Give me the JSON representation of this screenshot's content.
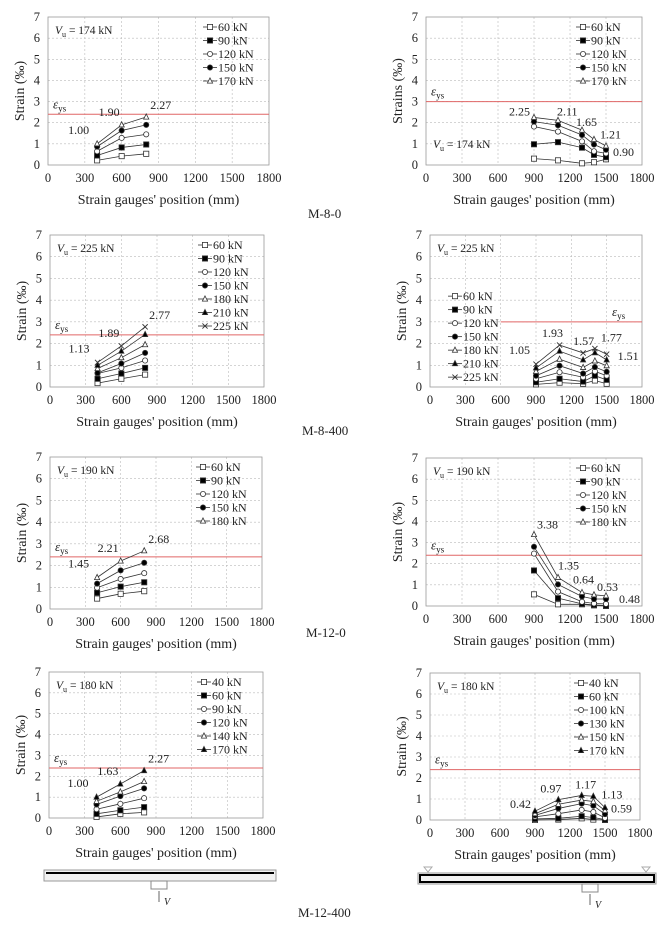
{
  "figure": {
    "captions": [
      "M-8-0",
      "M-8-400",
      "M-12-0",
      "M-12-400"
    ],
    "force_symbol": "V",
    "colors": {
      "yield_line": "#e06666",
      "series": "#333333",
      "grid": "#bbbbbb"
    }
  },
  "chart_data": [
    {
      "type": "line",
      "xlabel": "Strain gauges' position (mm)",
      "ylabel": "Strain (‰)",
      "xlim": [
        0,
        1800
      ],
      "ylim": [
        0,
        7
      ],
      "xticks": [
        0,
        300,
        600,
        900,
        1200,
        1500,
        1800
      ],
      "yticks": [
        0,
        1,
        2,
        3,
        4,
        5,
        6,
        7
      ],
      "grid": true,
      "vu": {
        "symbol": "V",
        "sub": "u",
        "text": " = 174 kN"
      },
      "vu_position": "top-left",
      "yield": {
        "symbol": "ε",
        "sub": "ys",
        "value": 2.4,
        "from": 0
      },
      "legend": "top-right",
      "x": [
        400,
        600,
        800
      ],
      "series": [
        {
          "name": "60 kN",
          "marker": "square-open",
          "values": [
            0.22,
            0.42,
            0.53
          ]
        },
        {
          "name": "90 kN",
          "marker": "square-filled",
          "values": [
            0.45,
            0.83,
            0.97
          ]
        },
        {
          "name": "120 kN",
          "marker": "circle-open",
          "values": [
            0.65,
            1.28,
            1.45
          ]
        },
        {
          "name": "150 kN",
          "marker": "circle-filled",
          "values": [
            0.87,
            1.63,
            1.9
          ]
        },
        {
          "name": "170 kN",
          "marker": "triangle-open",
          "values": [
            1.0,
            1.9,
            2.27
          ]
        }
      ],
      "labels": [
        "1.00",
        "1.90",
        "2.27"
      ]
    },
    {
      "type": "line",
      "xlabel": "Strain gauges' position (mm)",
      "ylabel": "Strains (‰)",
      "xlim": [
        0,
        1800
      ],
      "ylim": [
        0,
        7
      ],
      "xticks": [
        0,
        300,
        600,
        900,
        1200,
        1500,
        1800
      ],
      "yticks": [
        0,
        1,
        2,
        3,
        4,
        5,
        6,
        7
      ],
      "grid": true,
      "vu": {
        "symbol": "V",
        "sub": "u",
        "text": " = 174 kN"
      },
      "vu_position": "bottom-left",
      "yield": {
        "symbol": "ε",
        "sub": "ys",
        "value": 3.0,
        "from": 0
      },
      "legend": "top-right",
      "x": [
        900,
        1100,
        1300,
        1400,
        1500
      ],
      "series": [
        {
          "name": "60 kN",
          "marker": "square-open",
          "values": [
            0.3,
            0.22,
            0.08,
            0.13,
            0.27
          ]
        },
        {
          "name": "90 kN",
          "marker": "square-filled",
          "values": [
            0.98,
            1.08,
            0.82,
            0.48,
            0.37
          ]
        },
        {
          "name": "120 kN",
          "marker": "circle-open",
          "values": [
            1.82,
            1.58,
            1.12,
            0.65,
            0.55
          ]
        },
        {
          "name": "150 kN",
          "marker": "circle-filled",
          "values": [
            2.05,
            1.88,
            1.42,
            0.97,
            0.72
          ]
        },
        {
          "name": "170 kN",
          "marker": "triangle-open",
          "values": [
            2.25,
            2.11,
            1.65,
            1.21,
            0.9
          ]
        }
      ],
      "labels": [
        "2.25",
        "2.11",
        "1.65",
        "1.21",
        "0.90"
      ]
    },
    {
      "type": "line",
      "xlabel": "Strain gauges' position (mm)",
      "ylabel": "Strain (‰)",
      "xlim": [
        0,
        1800
      ],
      "ylim": [
        0,
        7
      ],
      "xticks": [
        0,
        300,
        600,
        900,
        1200,
        1500,
        1800
      ],
      "yticks": [
        0,
        1,
        2,
        3,
        4,
        5,
        6,
        7
      ],
      "grid": true,
      "vu": {
        "symbol": "V",
        "sub": "u",
        "text": " = 225 kN"
      },
      "vu_position": "top-left",
      "yield": {
        "symbol": "ε",
        "sub": "ys",
        "value": 2.4,
        "from": 0
      },
      "legend": "top-right",
      "x": [
        400,
        600,
        800
      ],
      "series": [
        {
          "name": "60 kN",
          "marker": "square-open",
          "values": [
            0.18,
            0.38,
            0.57
          ]
        },
        {
          "name": "90 kN",
          "marker": "square-filled",
          "values": [
            0.38,
            0.62,
            0.88
          ]
        },
        {
          "name": "120 kN",
          "marker": "circle-open",
          "values": [
            0.62,
            0.88,
            1.22
          ]
        },
        {
          "name": "150 kN",
          "marker": "circle-filled",
          "values": [
            0.65,
            1.08,
            1.57
          ]
        },
        {
          "name": "180 kN",
          "marker": "triangle-open",
          "values": [
            0.85,
            1.35,
            1.95
          ]
        },
        {
          "name": "210 kN",
          "marker": "triangle-filled",
          "values": [
            1.0,
            1.65,
            2.42
          ]
        },
        {
          "name": "225 kN",
          "marker": "cross",
          "values": [
            1.13,
            1.89,
            2.77
          ]
        }
      ],
      "labels": [
        "1.13",
        "1.89",
        "2.77"
      ]
    },
    {
      "type": "line",
      "xlabel": "Strain gauges' position (mm)",
      "ylabel": "Strain (‰)",
      "xlim": [
        0,
        1800
      ],
      "ylim": [
        0,
        7
      ],
      "xticks": [
        0,
        300,
        600,
        900,
        1200,
        1500,
        1800
      ],
      "yticks": [
        0,
        1,
        2,
        3,
        4,
        5,
        6,
        7
      ],
      "grid": true,
      "vu": {
        "symbol": "V",
        "sub": "u",
        "text": " = 225 kN"
      },
      "vu_position": "top-left",
      "yield": {
        "symbol": "ε",
        "sub": "ys",
        "value": 3.0,
        "from": 600
      },
      "legend": "middle-left",
      "x": [
        900,
        1100,
        1300,
        1400,
        1500
      ],
      "series": [
        {
          "name": "60 kN",
          "marker": "square-open",
          "values": [
            0.12,
            0.2,
            0.15,
            0.3,
            0.15
          ]
        },
        {
          "name": "90 kN",
          "marker": "square-filled",
          "values": [
            0.22,
            0.38,
            0.25,
            0.52,
            0.33
          ]
        },
        {
          "name": "120 kN",
          "marker": "circle-open",
          "values": [
            0.38,
            0.68,
            0.45,
            0.72,
            0.52
          ]
        },
        {
          "name": "150 kN",
          "marker": "circle-filled",
          "values": [
            0.52,
            0.98,
            0.62,
            0.92,
            0.7
          ]
        },
        {
          "name": "180 kN",
          "marker": "triangle-open",
          "values": [
            0.72,
            1.28,
            0.9,
            1.2,
            0.98
          ]
        },
        {
          "name": "210 kN",
          "marker": "triangle-filled",
          "values": [
            0.88,
            1.65,
            1.25,
            1.58,
            1.25
          ]
        },
        {
          "name": "225 kN",
          "marker": "cross",
          "values": [
            1.05,
            1.93,
            1.57,
            1.77,
            1.51
          ]
        }
      ],
      "labels": [
        "1.05",
        "1.93",
        "1.57",
        "1.77",
        "1.51"
      ]
    },
    {
      "type": "line",
      "xlabel": "Strain gauges' position (mm)",
      "ylabel": "Strain (‰)",
      "xlim": [
        0,
        1800
      ],
      "ylim": [
        0,
        7
      ],
      "xticks": [
        0,
        300,
        600,
        900,
        1200,
        1500,
        1800
      ],
      "yticks": [
        0,
        1,
        2,
        3,
        4,
        5,
        6,
        7
      ],
      "grid": true,
      "vu": {
        "symbol": "V",
        "sub": "u",
        "text": " = 190 kN"
      },
      "vu_position": "top-left",
      "yield": {
        "symbol": "ε",
        "sub": "ys",
        "value": 2.4,
        "from": 0
      },
      "legend": "top-right",
      "x": [
        400,
        600,
        800
      ],
      "series": [
        {
          "name": "60 kN",
          "marker": "square-open",
          "values": [
            0.48,
            0.7,
            0.82
          ]
        },
        {
          "name": "90 kN",
          "marker": "square-filled",
          "values": [
            0.75,
            1.03,
            1.23
          ]
        },
        {
          "name": "120 kN",
          "marker": "circle-open",
          "values": [
            0.98,
            1.38,
            1.65
          ]
        },
        {
          "name": "150 kN",
          "marker": "circle-filled",
          "values": [
            1.17,
            1.78,
            2.13
          ]
        },
        {
          "name": "180 kN",
          "marker": "triangle-open",
          "values": [
            1.45,
            2.21,
            2.68
          ]
        }
      ],
      "labels": [
        "1.45",
        "2.21",
        "2.68"
      ]
    },
    {
      "type": "line",
      "xlabel": "Strain gauges' position (mm)",
      "ylabel": "Strain (‰)",
      "xlim": [
        0,
        1800
      ],
      "ylim": [
        0,
        7
      ],
      "xticks": [
        0,
        300,
        600,
        900,
        1200,
        1500,
        1800
      ],
      "yticks": [
        0,
        1,
        2,
        3,
        4,
        5,
        6,
        7
      ],
      "grid": true,
      "vu": {
        "symbol": "V",
        "sub": "u",
        "text": " = 190 kN"
      },
      "vu_position": "top-left",
      "yield": {
        "symbol": "ε",
        "sub": "ys",
        "value": 2.4,
        "from": 0
      },
      "legend": "top-right",
      "x": [
        900,
        1100,
        1300,
        1400,
        1500
      ],
      "series": [
        {
          "name": "60 kN",
          "marker": "square-open",
          "values": [
            0.55,
            0.08,
            0.08,
            0.03,
            0.0
          ]
        },
        {
          "name": "90 kN",
          "marker": "square-filled",
          "values": [
            1.68,
            0.37,
            0.1,
            0.05,
            0.02
          ]
        },
        {
          "name": "120 kN",
          "marker": "circle-open",
          "values": [
            2.48,
            0.68,
            0.2,
            0.12,
            0.1
          ]
        },
        {
          "name": "150 kN",
          "marker": "circle-filled",
          "values": [
            2.8,
            1.02,
            0.45,
            0.33,
            0.33
          ]
        },
        {
          "name": "180 kN",
          "marker": "triangle-open",
          "values": [
            3.38,
            1.35,
            0.64,
            0.53,
            0.48
          ]
        }
      ],
      "labels": [
        "3.38",
        "1.35",
        "0.64",
        "0.53",
        "0.48"
      ]
    },
    {
      "type": "line",
      "xlabel": "Strain gauges' position (mm)",
      "ylabel": "Strain (‰)",
      "xlim": [
        0,
        1800
      ],
      "ylim": [
        0,
        7
      ],
      "xticks": [
        0,
        300,
        600,
        900,
        1200,
        1500,
        1800
      ],
      "yticks": [
        0,
        1,
        2,
        3,
        4,
        5,
        6,
        7
      ],
      "grid": true,
      "vu": {
        "symbol": "V",
        "sub": "u",
        "text": " = 180 kN"
      },
      "vu_position": "top-left",
      "yield": {
        "symbol": "ε",
        "sub": "ys",
        "value": 2.4,
        "from": 0
      },
      "legend": "top-right",
      "x": [
        400,
        600,
        800
      ],
      "series": [
        {
          "name": "40 kN",
          "marker": "square-open",
          "values": [
            0.05,
            0.2,
            0.27
          ]
        },
        {
          "name": "60 kN",
          "marker": "square-filled",
          "values": [
            0.2,
            0.37,
            0.52
          ]
        },
        {
          "name": "90 kN",
          "marker": "circle-open",
          "values": [
            0.42,
            0.68,
            0.95
          ]
        },
        {
          "name": "120 kN",
          "marker": "circle-filled",
          "values": [
            0.65,
            1.05,
            1.42
          ]
        },
        {
          "name": "140 kN",
          "marker": "triangle-open",
          "values": [
            0.8,
            1.25,
            1.75
          ]
        },
        {
          "name": "170 kN",
          "marker": "triangle-filled",
          "values": [
            1.0,
            1.63,
            2.27
          ]
        }
      ],
      "labels": [
        "1.00",
        "1.63",
        "2.27"
      ]
    },
    {
      "type": "line",
      "xlabel": "Strain gauges' position (mm)",
      "ylabel": "Strain (‰)",
      "xlim": [
        0,
        1800
      ],
      "ylim": [
        0,
        7
      ],
      "xticks": [
        0,
        300,
        600,
        900,
        1200,
        1500,
        1800
      ],
      "yticks": [
        0,
        1,
        2,
        3,
        4,
        5,
        6,
        7
      ],
      "grid": true,
      "vu": {
        "symbol": "V",
        "sub": "u",
        "text": " = 180 kN"
      },
      "vu_position": "top-left",
      "yield": {
        "symbol": "ε",
        "sub": "ys",
        "value": 2.4,
        "from": 0
      },
      "legend": "top-right",
      "x": [
        900,
        1100,
        1300,
        1400,
        1500
      ],
      "series": [
        {
          "name": "40 kN",
          "marker": "square-open",
          "values": [
            0.0,
            0.02,
            0.08,
            0.02,
            0.0
          ]
        },
        {
          "name": "60 kN",
          "marker": "square-filled",
          "values": [
            0.05,
            0.08,
            0.18,
            0.12,
            0.02
          ]
        },
        {
          "name": "100 kN",
          "marker": "circle-open",
          "values": [
            0.15,
            0.3,
            0.48,
            0.38,
            0.1
          ]
        },
        {
          "name": "130 kN",
          "marker": "circle-filled",
          "values": [
            0.22,
            0.55,
            0.78,
            0.68,
            0.28
          ]
        },
        {
          "name": "150 kN",
          "marker": "triangle-open",
          "values": [
            0.3,
            0.75,
            0.95,
            0.88,
            0.45
          ]
        },
        {
          "name": "170 kN",
          "marker": "triangle-filled",
          "values": [
            0.42,
            0.97,
            1.17,
            1.13,
            0.59
          ]
        }
      ],
      "labels": [
        "0.42",
        "0.97",
        "1.17",
        "1.13",
        "0.59"
      ]
    }
  ]
}
